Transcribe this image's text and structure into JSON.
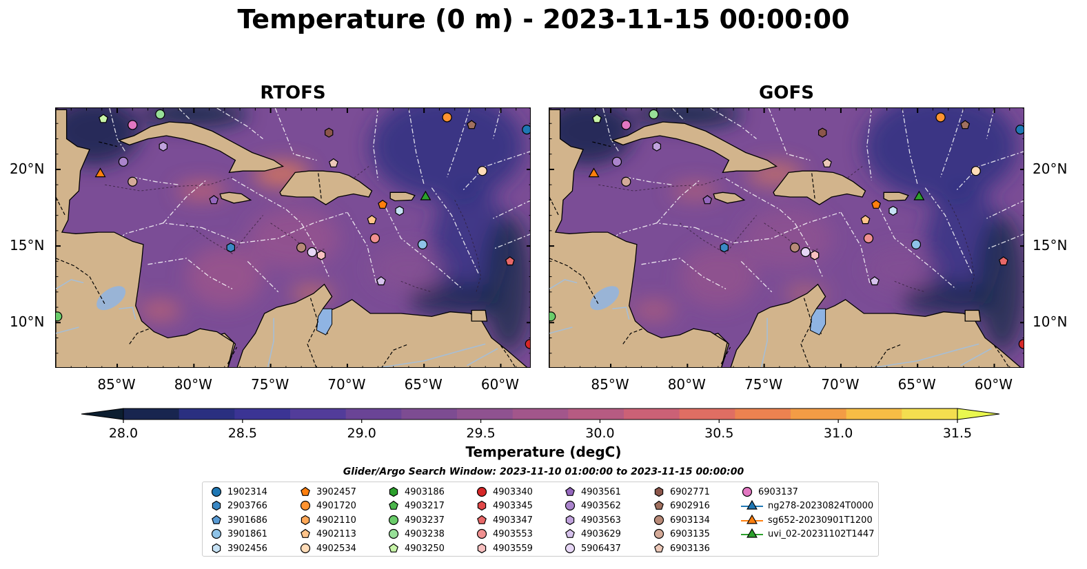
{
  "title": "Temperature (0 m) - 2023-11-15 00:00:00",
  "panels": [
    {
      "id": "rtofs",
      "title": "RTOFS"
    },
    {
      "id": "gofs",
      "title": "GOFS"
    }
  ],
  "map_extent": {
    "lon": [
      -89,
      -58
    ],
    "lat": [
      7,
      24
    ]
  },
  "lon_ticks": [
    {
      "value": -85,
      "label": "85°W"
    },
    {
      "value": -80,
      "label": "80°W"
    },
    {
      "value": -75,
      "label": "75°W"
    },
    {
      "value": -70,
      "label": "70°W"
    },
    {
      "value": -65,
      "label": "65°W"
    },
    {
      "value": -60,
      "label": "60°W"
    }
  ],
  "lat_ticks": [
    {
      "value": 20,
      "label": "20°N"
    },
    {
      "value": 15,
      "label": "15°N"
    },
    {
      "value": 10,
      "label": "10°N"
    }
  ],
  "colors": {
    "land": "#d2b48c",
    "lake": "#8fb4e3",
    "ocean_base": "#7b4d96",
    "ocean_deep": "#3a2f8c",
    "ocean_cool": "#0f2a45",
    "ocean_warm": "#c9587a"
  },
  "colorbar": {
    "label": "Temperature (degC)",
    "min": 28.0,
    "max": 31.5,
    "step": 0.25,
    "extend": "both",
    "ticks": [
      {
        "value": 28.0,
        "label": "28.0"
      },
      {
        "value": 28.5,
        "label": "28.5"
      },
      {
        "value": 29.0,
        "label": "29.0"
      },
      {
        "value": 29.5,
        "label": "29.5"
      },
      {
        "value": 30.0,
        "label": "30.0"
      },
      {
        "value": 30.5,
        "label": "30.5"
      },
      {
        "value": 31.0,
        "label": "31.0"
      },
      {
        "value": 31.5,
        "label": "31.5"
      }
    ],
    "colors": [
      "#0c1e30",
      "#18254f",
      "#2a2f80",
      "#3b3494",
      "#523c9a",
      "#6a4496",
      "#7d4c92",
      "#8f5290",
      "#a2568b",
      "#b65b82",
      "#cb6176",
      "#df6e63",
      "#ec8250",
      "#f39c45",
      "#f7bd45",
      "#f4de4f",
      "#e9f74f"
    ]
  },
  "search_window": "Glider/Argo Search Window: 2023-11-10 01:00:00 to 2023-11-15 00:00:00",
  "markers": [
    {
      "label": "1902314",
      "shape": "circle",
      "color": "#1f77b4",
      "lon": -58.3,
      "lat": 22.6
    },
    {
      "label": "2903766",
      "shape": "hexagon",
      "color": "#3b88c4",
      "lon": -77.6,
      "lat": 14.9
    },
    {
      "label": "3901686",
      "shape": "pentagon",
      "color": "#5a9bd4"
    },
    {
      "label": "3901861",
      "shape": "circle",
      "color": "#8ec3e8",
      "lon": -65.1,
      "lat": 15.1
    },
    {
      "label": "3902456",
      "shape": "hexagon",
      "color": "#c6e2f5",
      "lon": -66.6,
      "lat": 17.3
    },
    {
      "label": "3902457",
      "shape": "pentagon",
      "color": "#ff7f0e",
      "lon": -67.7,
      "lat": 17.7
    },
    {
      "label": "4901720",
      "shape": "circle",
      "color": "#ff9330",
      "lon": -63.5,
      "lat": 23.4
    },
    {
      "label": "4902110",
      "shape": "hexagon",
      "color": "#ffa858"
    },
    {
      "label": "4902113",
      "shape": "pentagon",
      "color": "#ffc48a",
      "lon": -68.4,
      "lat": 16.7
    },
    {
      "label": "4902534",
      "shape": "circle",
      "color": "#ffdcb8",
      "lon": -61.2,
      "lat": 19.9
    },
    {
      "label": "4903186",
      "shape": "hexagon",
      "color": "#2ca02c"
    },
    {
      "label": "4903217",
      "shape": "pentagon",
      "color": "#4cb64c"
    },
    {
      "label": "4903237",
      "shape": "circle",
      "color": "#6acc6a",
      "lon": -88.9,
      "lat": 10.4
    },
    {
      "label": "4903238",
      "shape": "circle",
      "color": "#98e098",
      "lon": -82.2,
      "lat": 23.6
    },
    {
      "label": "4903250",
      "shape": "pentagon",
      "color": "#c8f5a8",
      "lon": -85.9,
      "lat": 23.3
    },
    {
      "label": "4903340",
      "shape": "circle",
      "color": "#d62728",
      "lon": -58.1,
      "lat": 8.6
    },
    {
      "label": "4903345",
      "shape": "hexagon",
      "color": "#e04848"
    },
    {
      "label": "4903347",
      "shape": "pentagon",
      "color": "#e86868",
      "lon": -59.4,
      "lat": 14.0
    },
    {
      "label": "4903553",
      "shape": "circle",
      "color": "#f09090",
      "lon": -68.2,
      "lat": 15.5
    },
    {
      "label": "4903559",
      "shape": "hexagon",
      "color": "#f8c0c0",
      "lon": -71.7,
      "lat": 14.4
    },
    {
      "label": "4903561",
      "shape": "pentagon",
      "color": "#9467bd",
      "lon": -78.7,
      "lat": 18.0
    },
    {
      "label": "4903562",
      "shape": "circle",
      "color": "#aa84cc",
      "lon": -84.6,
      "lat": 20.5
    },
    {
      "label": "4903563",
      "shape": "hexagon",
      "color": "#c0a2dc",
      "lon": -82.0,
      "lat": 21.5
    },
    {
      "label": "4903629",
      "shape": "pentagon",
      "color": "#d6c2ec",
      "lon": -67.8,
      "lat": 12.7
    },
    {
      "label": "5906437",
      "shape": "circle",
      "color": "#e6d6f5",
      "lon": -72.3,
      "lat": 14.6
    },
    {
      "label": "6902771",
      "shape": "hexagon",
      "color": "#8c564b",
      "lon": -71.2,
      "lat": 22.4
    },
    {
      "label": "6902916",
      "shape": "pentagon",
      "color": "#a0705f",
      "lon": -61.9,
      "lat": 22.9
    },
    {
      "label": "6903134",
      "shape": "circle",
      "color": "#b88a78",
      "lon": -73.0,
      "lat": 14.9
    },
    {
      "label": "6903135",
      "shape": "circle",
      "color": "#d4aa98",
      "lon": -84.0,
      "lat": 19.2
    },
    {
      "label": "6903136",
      "shape": "pentagon",
      "color": "#ecc8b8",
      "lon": -70.9,
      "lat": 20.4
    },
    {
      "label": "6903137",
      "shape": "circle",
      "color": "#e377c2",
      "lon": -84.0,
      "lat": 22.9
    }
  ],
  "gliders": [
    {
      "label": "ng278-20230824T0000",
      "color": "#1f77b4"
    },
    {
      "label": "sg652-20230901T1200",
      "color": "#ff7f0e",
      "lon": -86.1,
      "lat": 19.7
    },
    {
      "label": "uvi_02-20231102T1447",
      "color": "#2ca02c",
      "lon": -64.9,
      "lat": 18.2
    }
  ]
}
